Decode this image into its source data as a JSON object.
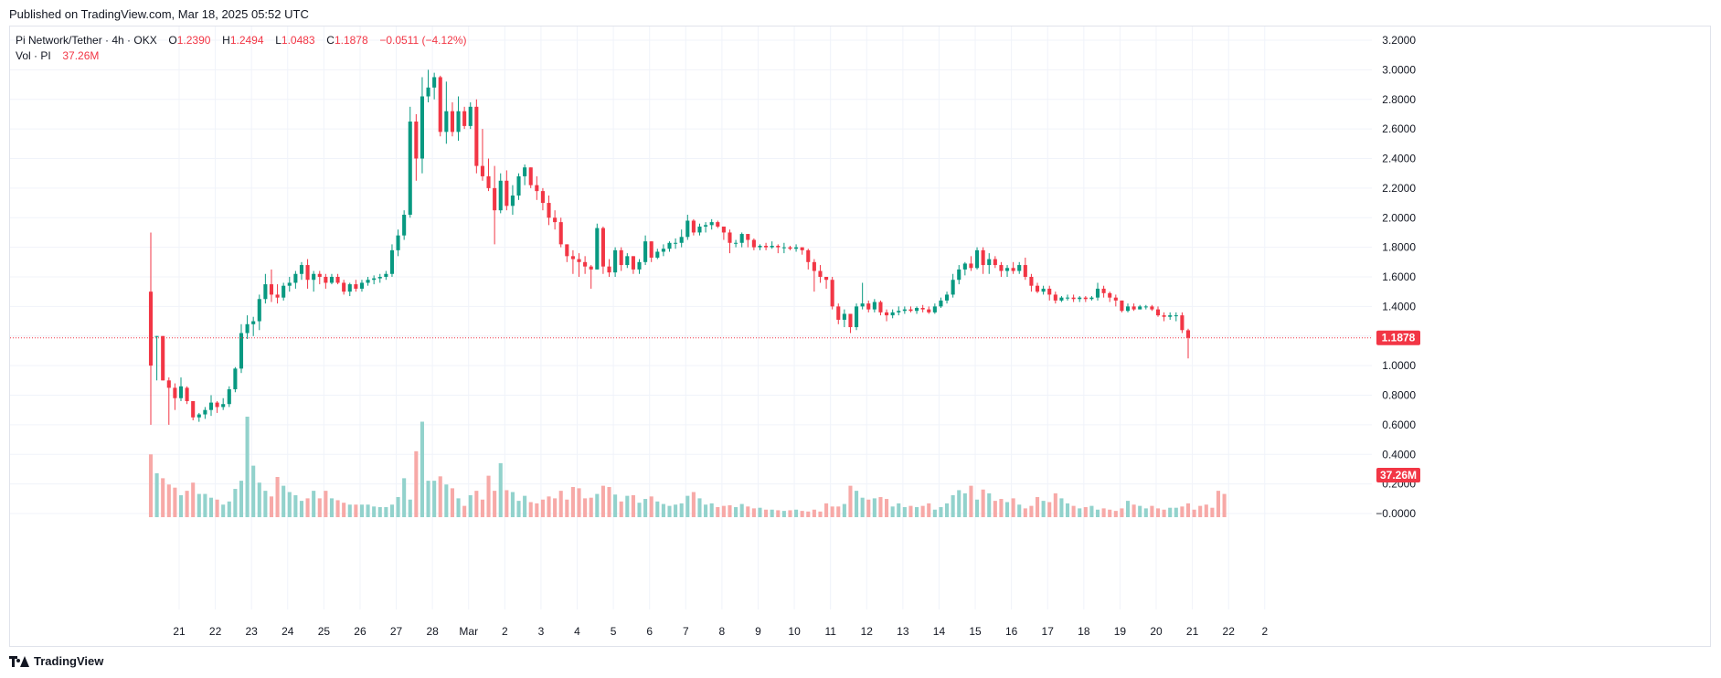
{
  "header": {
    "published": "Published on TradingView.com, Mar 18, 2025 05:52 UTC"
  },
  "legend": {
    "symbol": "Pi Network/Tether · 4h · OKX",
    "o_label": "O",
    "o_value": "1.2390",
    "h_label": "H",
    "h_value": "1.2494",
    "l_label": "L",
    "l_value": "1.0483",
    "c_label": "C",
    "c_value": "1.1878",
    "change": "−0.0511 (−4.12%)",
    "vol_label": "Vol · PI",
    "vol_value": "37.26M"
  },
  "footer": {
    "brand": "TradingView",
    "logo_icon": "tradingview-logo-icon"
  },
  "colors": {
    "up": "#089981",
    "down": "#f23645",
    "vol_up": "#92d2cc",
    "vol_down": "#f7a9a7",
    "grid": "#f0f3fa",
    "label_bg": "#f23645"
  },
  "chart_data": {
    "type": "candlestick",
    "interval": "4h",
    "ylim": [
      -0.1,
      3.25
    ],
    "price_ticks": [
      "3.2000",
      "3.0000",
      "2.8000",
      "2.6000",
      "2.4000",
      "2.2000",
      "2.0000",
      "1.8000",
      "1.6000",
      "1.4000",
      "1.2000",
      "1.0000",
      "0.8000",
      "0.6000",
      "0.4000",
      "0.2000",
      "−0.0000"
    ],
    "x_ticks": [
      "21",
      "22",
      "23",
      "24",
      "25",
      "26",
      "27",
      "28",
      "Mar",
      "2",
      "3",
      "4",
      "5",
      "6",
      "7",
      "8",
      "9",
      "10",
      "11",
      "12",
      "13",
      "14",
      "15",
      "16",
      "17",
      "18",
      "19",
      "20",
      "21",
      "22",
      "2"
    ],
    "last_price_label": "1.1878",
    "last_price": 1.1878,
    "volume_label": "37.26M",
    "candles": [
      [
        1.9,
        0.6,
        1.5,
        1.0
      ],
      [
        1.2,
        0.9,
        1.2,
        1.2
      ],
      [
        1.2,
        0.9,
        1.2,
        0.9
      ],
      [
        0.92,
        0.6,
        0.9,
        0.85
      ],
      [
        0.88,
        0.7,
        0.85,
        0.78
      ],
      [
        0.92,
        0.76,
        0.78,
        0.86
      ],
      [
        0.86,
        0.74,
        0.85,
        0.76
      ],
      [
        0.76,
        0.63,
        0.76,
        0.65
      ],
      [
        0.68,
        0.62,
        0.65,
        0.67
      ],
      [
        0.72,
        0.64,
        0.67,
        0.7
      ],
      [
        0.8,
        0.66,
        0.7,
        0.75
      ],
      [
        0.76,
        0.68,
        0.75,
        0.72
      ],
      [
        0.78,
        0.7,
        0.72,
        0.74
      ],
      [
        0.86,
        0.72,
        0.74,
        0.84
      ],
      [
        0.99,
        0.82,
        0.84,
        0.98
      ],
      [
        1.28,
        0.95,
        0.98,
        1.22
      ],
      [
        1.34,
        1.18,
        1.22,
        1.28
      ],
      [
        1.33,
        1.2,
        1.28,
        1.3
      ],
      [
        1.48,
        1.24,
        1.3,
        1.45
      ],
      [
        1.62,
        1.42,
        1.45,
        1.55
      ],
      [
        1.65,
        1.43,
        1.55,
        1.48
      ],
      [
        1.55,
        1.42,
        1.48,
        1.46
      ],
      [
        1.56,
        1.44,
        1.46,
        1.54
      ],
      [
        1.6,
        1.5,
        1.54,
        1.56
      ],
      [
        1.64,
        1.52,
        1.56,
        1.62
      ],
      [
        1.7,
        1.58,
        1.62,
        1.68
      ],
      [
        1.72,
        1.52,
        1.68,
        1.58
      ],
      [
        1.64,
        1.5,
        1.58,
        1.62
      ],
      [
        1.64,
        1.55,
        1.62,
        1.6
      ],
      [
        1.62,
        1.52,
        1.6,
        1.56
      ],
      [
        1.62,
        1.55,
        1.56,
        1.6
      ],
      [
        1.62,
        1.55,
        1.6,
        1.56
      ],
      [
        1.58,
        1.48,
        1.56,
        1.5
      ],
      [
        1.56,
        1.47,
        1.5,
        1.55
      ],
      [
        1.58,
        1.5,
        1.55,
        1.52
      ],
      [
        1.58,
        1.5,
        1.52,
        1.56
      ],
      [
        1.6,
        1.54,
        1.56,
        1.58
      ],
      [
        1.61,
        1.55,
        1.58,
        1.59
      ],
      [
        1.62,
        1.56,
        1.59,
        1.6
      ],
      [
        1.64,
        1.58,
        1.6,
        1.62
      ],
      [
        1.82,
        1.6,
        1.62,
        1.78
      ],
      [
        1.92,
        1.74,
        1.78,
        1.88
      ],
      [
        2.05,
        1.85,
        1.88,
        2.02
      ],
      [
        2.75,
        2.0,
        2.02,
        2.65
      ],
      [
        2.7,
        2.25,
        2.65,
        2.4
      ],
      [
        2.95,
        2.3,
        2.4,
        2.82
      ],
      [
        3.0,
        2.78,
        2.82,
        2.88
      ],
      [
        2.98,
        2.8,
        2.88,
        2.95
      ],
      [
        2.96,
        2.55,
        2.95,
        2.58
      ],
      [
        2.92,
        2.5,
        2.58,
        2.72
      ],
      [
        2.78,
        2.55,
        2.72,
        2.58
      ],
      [
        2.82,
        2.52,
        2.58,
        2.72
      ],
      [
        2.75,
        2.6,
        2.72,
        2.62
      ],
      [
        2.78,
        2.6,
        2.62,
        2.75
      ],
      [
        2.8,
        2.3,
        2.75,
        2.35
      ],
      [
        2.6,
        2.25,
        2.35,
        2.28
      ],
      [
        2.4,
        2.18,
        2.28,
        2.2
      ],
      [
        2.35,
        1.82,
        2.2,
        2.05
      ],
      [
        2.3,
        2.03,
        2.05,
        2.25
      ],
      [
        2.32,
        2.05,
        2.25,
        2.08
      ],
      [
        2.22,
        2.02,
        2.08,
        2.15
      ],
      [
        2.3,
        2.12,
        2.15,
        2.28
      ],
      [
        2.36,
        2.22,
        2.28,
        2.34
      ],
      [
        2.34,
        2.2,
        2.34,
        2.22
      ],
      [
        2.28,
        2.12,
        2.22,
        2.18
      ],
      [
        2.2,
        2.05,
        2.18,
        2.1
      ],
      [
        2.15,
        1.95,
        2.1,
        2.0
      ],
      [
        2.05,
        1.92,
        2.0,
        1.97
      ],
      [
        2.0,
        1.8,
        1.97,
        1.82
      ],
      [
        1.82,
        1.7,
        1.82,
        1.74
      ],
      [
        1.78,
        1.62,
        1.74,
        1.72
      ],
      [
        1.76,
        1.6,
        1.72,
        1.7
      ],
      [
        1.74,
        1.62,
        1.7,
        1.67
      ],
      [
        1.68,
        1.52,
        1.67,
        1.65
      ],
      [
        1.96,
        1.65,
        1.65,
        1.93
      ],
      [
        1.94,
        1.62,
        1.93,
        1.67
      ],
      [
        1.72,
        1.6,
        1.67,
        1.63
      ],
      [
        1.8,
        1.6,
        1.63,
        1.78
      ],
      [
        1.8,
        1.64,
        1.78,
        1.68
      ],
      [
        1.76,
        1.66,
        1.68,
        1.74
      ],
      [
        1.74,
        1.62,
        1.74,
        1.65
      ],
      [
        1.72,
        1.62,
        1.65,
        1.7
      ],
      [
        1.88,
        1.68,
        1.7,
        1.84
      ],
      [
        1.84,
        1.7,
        1.84,
        1.73
      ],
      [
        1.79,
        1.72,
        1.73,
        1.77
      ],
      [
        1.82,
        1.74,
        1.77,
        1.79
      ],
      [
        1.84,
        1.77,
        1.79,
        1.83
      ],
      [
        1.86,
        1.79,
        1.83,
        1.83
      ],
      [
        1.92,
        1.8,
        1.83,
        1.87
      ],
      [
        2.02,
        1.85,
        1.87,
        1.98
      ],
      [
        1.99,
        1.88,
        1.98,
        1.9
      ],
      [
        1.96,
        1.88,
        1.9,
        1.94
      ],
      [
        1.97,
        1.9,
        1.94,
        1.95
      ],
      [
        1.99,
        1.92,
        1.95,
        1.97
      ],
      [
        1.98,
        1.93,
        1.97,
        1.94
      ],
      [
        1.94,
        1.85,
        1.94,
        1.9
      ],
      [
        1.92,
        1.76,
        1.9,
        1.83
      ],
      [
        1.85,
        1.8,
        1.83,
        1.83
      ],
      [
        1.9,
        1.8,
        1.83,
        1.89
      ],
      [
        1.89,
        1.8,
        1.89,
        1.85
      ],
      [
        1.86,
        1.78,
        1.85,
        1.8
      ],
      [
        1.82,
        1.78,
        1.8,
        1.81
      ],
      [
        1.83,
        1.78,
        1.81,
        1.8
      ],
      [
        1.84,
        1.79,
        1.8,
        1.81
      ],
      [
        1.82,
        1.76,
        1.81,
        1.8
      ],
      [
        1.83,
        1.76,
        1.8,
        1.8
      ],
      [
        1.81,
        1.78,
        1.8,
        1.79
      ],
      [
        1.82,
        1.77,
        1.79,
        1.8
      ],
      [
        1.8,
        1.75,
        1.8,
        1.78
      ],
      [
        1.79,
        1.65,
        1.78,
        1.7
      ],
      [
        1.72,
        1.5,
        1.7,
        1.64
      ],
      [
        1.68,
        1.56,
        1.64,
        1.6
      ],
      [
        1.6,
        1.52,
        1.6,
        1.58
      ],
      [
        1.6,
        1.38,
        1.58,
        1.4
      ],
      [
        1.42,
        1.28,
        1.4,
        1.31
      ],
      [
        1.38,
        1.26,
        1.31,
        1.35
      ],
      [
        1.35,
        1.22,
        1.35,
        1.26
      ],
      [
        1.42,
        1.24,
        1.26,
        1.4
      ],
      [
        1.56,
        1.38,
        1.4,
        1.42
      ],
      [
        1.44,
        1.36,
        1.42,
        1.38
      ],
      [
        1.45,
        1.36,
        1.38,
        1.43
      ],
      [
        1.44,
        1.34,
        1.43,
        1.36
      ],
      [
        1.38,
        1.3,
        1.36,
        1.34
      ],
      [
        1.38,
        1.32,
        1.34,
        1.36
      ],
      [
        1.4,
        1.34,
        1.36,
        1.37
      ],
      [
        1.4,
        1.35,
        1.37,
        1.38
      ],
      [
        1.4,
        1.36,
        1.38,
        1.37
      ],
      [
        1.4,
        1.35,
        1.37,
        1.39
      ],
      [
        1.41,
        1.36,
        1.39,
        1.38
      ],
      [
        1.4,
        1.35,
        1.38,
        1.36
      ],
      [
        1.42,
        1.35,
        1.36,
        1.4
      ],
      [
        1.46,
        1.39,
        1.4,
        1.44
      ],
      [
        1.5,
        1.42,
        1.44,
        1.48
      ],
      [
        1.62,
        1.46,
        1.48,
        1.58
      ],
      [
        1.68,
        1.55,
        1.58,
        1.65
      ],
      [
        1.7,
        1.61,
        1.65,
        1.69
      ],
      [
        1.74,
        1.64,
        1.69,
        1.66
      ],
      [
        1.8,
        1.65,
        1.66,
        1.78
      ],
      [
        1.8,
        1.62,
        1.78,
        1.68
      ],
      [
        1.76,
        1.62,
        1.68,
        1.72
      ],
      [
        1.74,
        1.66,
        1.72,
        1.68
      ],
      [
        1.7,
        1.6,
        1.68,
        1.64
      ],
      [
        1.68,
        1.6,
        1.64,
        1.66
      ],
      [
        1.7,
        1.62,
        1.66,
        1.64
      ],
      [
        1.7,
        1.62,
        1.64,
        1.68
      ],
      [
        1.73,
        1.58,
        1.68,
        1.6
      ],
      [
        1.62,
        1.5,
        1.6,
        1.54
      ],
      [
        1.56,
        1.49,
        1.54,
        1.5
      ],
      [
        1.54,
        1.48,
        1.5,
        1.52
      ],
      [
        1.54,
        1.44,
        1.52,
        1.48
      ],
      [
        1.5,
        1.42,
        1.48,
        1.44
      ],
      [
        1.47,
        1.43,
        1.44,
        1.46
      ],
      [
        1.48,
        1.44,
        1.46,
        1.46
      ],
      [
        1.48,
        1.43,
        1.46,
        1.45
      ],
      [
        1.47,
        1.43,
        1.45,
        1.46
      ],
      [
        1.47,
        1.43,
        1.46,
        1.45
      ],
      [
        1.47,
        1.44,
        1.45,
        1.46
      ],
      [
        1.56,
        1.44,
        1.46,
        1.52
      ],
      [
        1.54,
        1.46,
        1.52,
        1.49
      ],
      [
        1.5,
        1.43,
        1.49,
        1.46
      ],
      [
        1.48,
        1.4,
        1.46,
        1.44
      ],
      [
        1.44,
        1.36,
        1.44,
        1.37
      ],
      [
        1.42,
        1.36,
        1.37,
        1.4
      ],
      [
        1.42,
        1.37,
        1.4,
        1.38
      ],
      [
        1.41,
        1.38,
        1.38,
        1.4
      ],
      [
        1.41,
        1.38,
        1.4,
        1.4
      ],
      [
        1.41,
        1.37,
        1.4,
        1.38
      ],
      [
        1.4,
        1.33,
        1.38,
        1.34
      ],
      [
        1.36,
        1.3,
        1.34,
        1.33
      ],
      [
        1.36,
        1.31,
        1.33,
        1.34
      ],
      [
        1.36,
        1.3,
        1.34,
        1.34
      ],
      [
        1.36,
        1.22,
        1.34,
        1.24
      ],
      [
        1.2494,
        1.0483,
        1.239,
        1.1878
      ]
    ],
    "volumes": [
      1.0,
      0.7,
      0.62,
      0.52,
      0.47,
      0.35,
      0.42,
      0.55,
      0.37,
      0.37,
      0.31,
      0.28,
      0.2,
      0.25,
      0.45,
      0.58,
      1.6,
      0.82,
      0.55,
      0.42,
      0.33,
      0.64,
      0.5,
      0.4,
      0.35,
      0.26,
      0.3,
      0.42,
      0.3,
      0.42,
      0.3,
      0.27,
      0.23,
      0.2,
      0.2,
      0.2,
      0.2,
      0.17,
      0.16,
      0.16,
      0.2,
      0.32,
      0.62,
      0.28,
      1.05,
      1.52,
      0.58,
      0.58,
      0.65,
      0.52,
      0.46,
      0.3,
      0.18,
      0.35,
      0.42,
      0.28,
      0.66,
      0.42,
      0.86,
      0.43,
      0.4,
      0.26,
      0.34,
      0.24,
      0.22,
      0.28,
      0.33,
      0.3,
      0.42,
      0.28,
      0.48,
      0.46,
      0.3,
      0.31,
      0.37,
      0.5,
      0.48,
      0.36,
      0.25,
      0.34,
      0.35,
      0.23,
      0.29,
      0.33,
      0.25,
      0.21,
      0.18,
      0.2,
      0.22,
      0.34,
      0.4,
      0.3,
      0.2,
      0.22,
      0.16,
      0.18,
      0.19,
      0.16,
      0.21,
      0.17,
      0.14,
      0.15,
      0.12,
      0.12,
      0.11,
      0.1,
      0.11,
      0.12,
      0.1,
      0.09,
      0.12,
      0.09,
      0.22,
      0.17,
      0.17,
      0.21,
      0.5,
      0.42,
      0.31,
      0.28,
      0.3,
      0.32,
      0.29,
      0.17,
      0.22,
      0.16,
      0.18,
      0.16,
      0.18,
      0.22,
      0.12,
      0.16,
      0.22,
      0.35,
      0.43,
      0.38,
      0.5,
      0.28,
      0.44,
      0.38,
      0.26,
      0.29,
      0.24,
      0.3,
      0.2,
      0.14,
      0.18,
      0.32,
      0.26,
      0.24,
      0.38,
      0.3,
      0.22,
      0.18,
      0.14,
      0.16,
      0.18,
      0.12,
      0.14,
      0.12,
      0.1,
      0.14,
      0.26,
      0.2,
      0.18,
      0.14,
      0.18,
      0.14,
      0.12,
      0.15,
      0.15,
      0.17,
      0.22,
      0.12,
      0.18,
      0.2,
      0.15,
      0.42,
      0.37
    ]
  }
}
